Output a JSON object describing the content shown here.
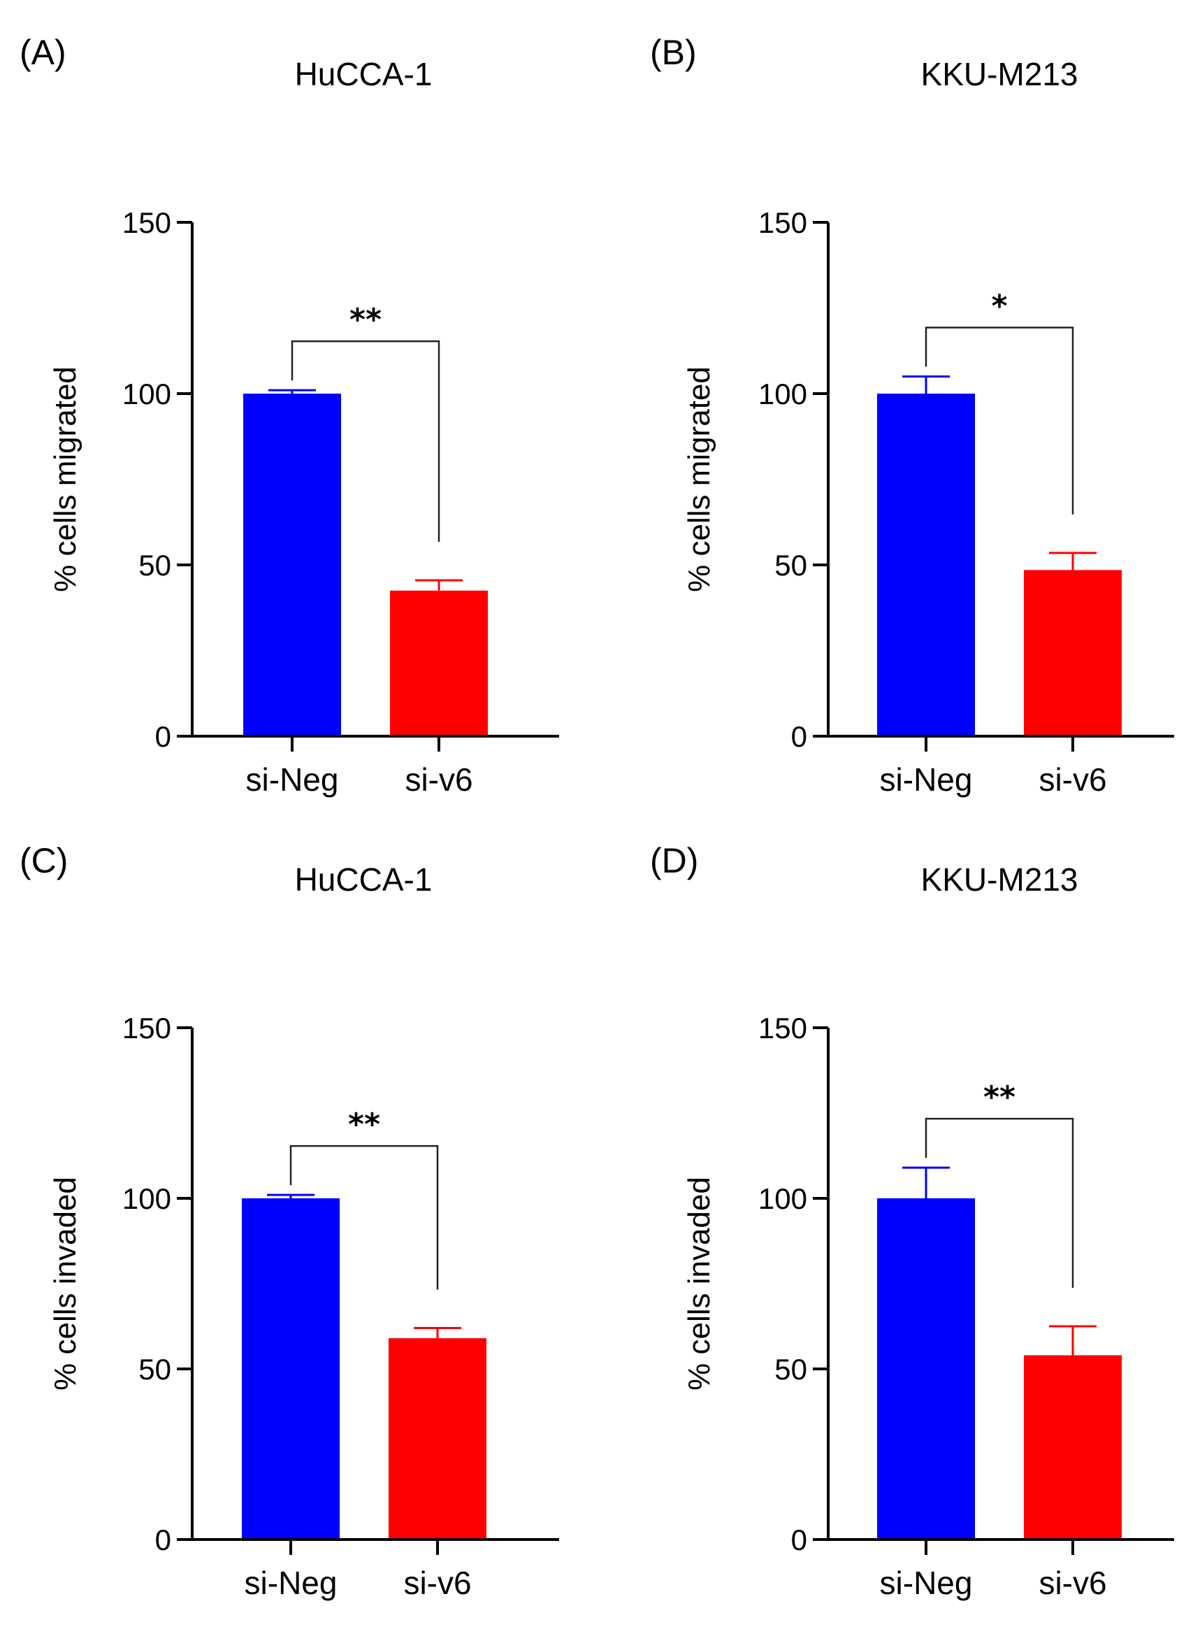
{
  "chart_data": [
    {
      "type": "bar",
      "panel": "(A)",
      "title": "HuCCA-1",
      "ylabel": "% cells migrated",
      "xlabel": "",
      "ylim": [
        0,
        150
      ],
      "yticks": [
        0,
        50,
        100,
        150
      ],
      "categories": [
        "si-Neg",
        "si-v6"
      ],
      "values": [
        100,
        42.5
      ],
      "errors": [
        1,
        3
      ],
      "colors": [
        "#0000ff",
        "#ff0000"
      ],
      "significance": {
        "label": "**",
        "from": 0,
        "to": 1
      }
    },
    {
      "type": "bar",
      "panel": "(B)",
      "title": "KKU-M213",
      "ylabel": "% cells migrated",
      "xlabel": "",
      "ylim": [
        0,
        150
      ],
      "yticks": [
        0,
        50,
        100,
        150
      ],
      "categories": [
        "si-Neg",
        "si-v6"
      ],
      "values": [
        100,
        48.5
      ],
      "errors": [
        5,
        5
      ],
      "colors": [
        "#0000ff",
        "#ff0000"
      ],
      "significance": {
        "label": "*",
        "from": 0,
        "to": 1
      }
    },
    {
      "type": "bar",
      "panel": "(C)",
      "title": "HuCCA-1",
      "ylabel": "% cells invaded",
      "xlabel": "",
      "ylim": [
        0,
        150
      ],
      "yticks": [
        0,
        50,
        100,
        150
      ],
      "categories": [
        "si-Neg",
        "si-v6"
      ],
      "values": [
        100,
        59
      ],
      "errors": [
        1,
        3
      ],
      "colors": [
        "#0000ff",
        "#ff0000"
      ],
      "significance": {
        "label": "**",
        "from": 0,
        "to": 1
      }
    },
    {
      "type": "bar",
      "panel": "(D)",
      "title": "KKU-M213",
      "ylabel": "% cells invaded",
      "xlabel": "",
      "ylim": [
        0,
        150
      ],
      "yticks": [
        0,
        50,
        100,
        150
      ],
      "categories": [
        "si-Neg",
        "si-v6"
      ],
      "values": [
        100,
        54
      ],
      "errors": [
        9,
        8.5
      ],
      "colors": [
        "#0000ff",
        "#ff0000"
      ],
      "significance": {
        "label": "**",
        "from": 0,
        "to": 1
      }
    }
  ]
}
